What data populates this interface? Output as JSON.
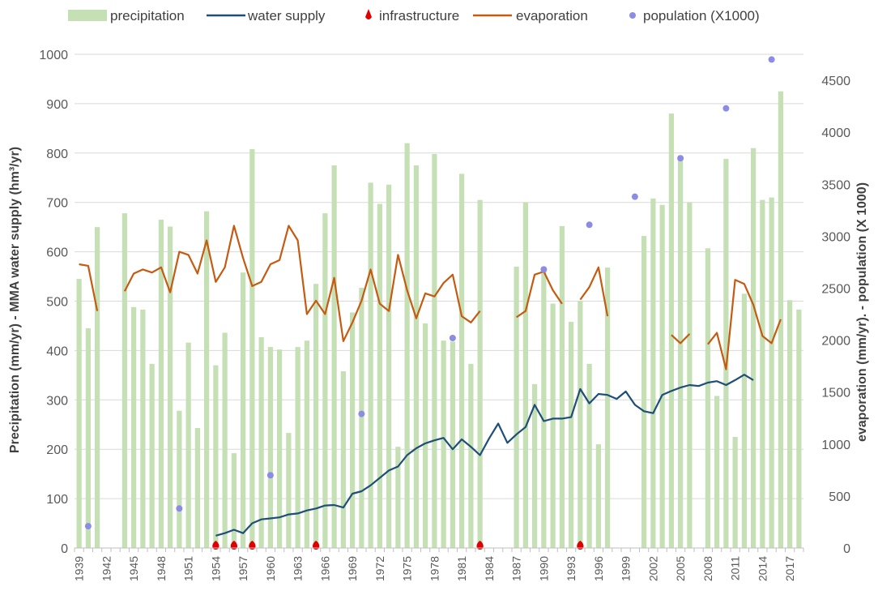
{
  "chart_data": {
    "type": "bar+line+scatter",
    "title": "",
    "ylabel_left": "Precipitation (mm/yr)  -  MMA water supply (hm³/yr)",
    "ylabel_right": "evaporation (mm/yr).  - population (X 1000)",
    "ylim_left": [
      0,
      1000
    ],
    "ylim_right": [
      0,
      4750
    ],
    "y_ticks_left": [
      0,
      100,
      200,
      300,
      400,
      500,
      600,
      700,
      800,
      900,
      1000
    ],
    "y_ticks_right": [
      0,
      500,
      1000,
      1500,
      2000,
      2500,
      3000,
      3500,
      4000,
      4500
    ],
    "year_start": 1939,
    "year_end": 2018,
    "x_tick_labels": [
      "1939",
      "1942",
      "1945",
      "1948",
      "1951",
      "1954",
      "1957",
      "1960",
      "1963",
      "1966",
      "1969",
      "1972",
      "1975",
      "1978",
      "1981",
      "1984",
      "1987",
      "1990",
      "1993",
      "1996",
      "1999",
      "2002",
      "2005",
      "2008",
      "2011",
      "2014",
      "2017"
    ],
    "legend": {
      "precipitation": "precipitation",
      "water_supply": "water supply",
      "infrastructure": "infrastructure",
      "evaporation": "evaporation",
      "population": "population (X1000)"
    },
    "colors": {
      "precipitation": "#c5e0b4",
      "water_supply": "#1f4e79",
      "infrastructure": "#e00000",
      "evaporation": "#c55a11",
      "population": "#8c8ce6",
      "grid": "#d9d9d9",
      "axis": "#bfbfbf"
    },
    "precipitation": [
      [
        1939,
        545
      ],
      [
        1940,
        445
      ],
      [
        1941,
        650
      ],
      [
        1944,
        678
      ],
      [
        1945,
        488
      ],
      [
        1946,
        483
      ],
      [
        1947,
        373
      ],
      [
        1948,
        665
      ],
      [
        1949,
        651
      ],
      [
        1950,
        278
      ],
      [
        1951,
        416
      ],
      [
        1952,
        243
      ],
      [
        1953,
        682
      ],
      [
        1954,
        370
      ],
      [
        1955,
        436
      ],
      [
        1956,
        192
      ],
      [
        1957,
        558
      ],
      [
        1958,
        808
      ],
      [
        1959,
        427
      ],
      [
        1960,
        407
      ],
      [
        1961,
        402
      ],
      [
        1962,
        233
      ],
      [
        1963,
        407
      ],
      [
        1964,
        420
      ],
      [
        1965,
        535
      ],
      [
        1966,
        678
      ],
      [
        1967,
        775
      ],
      [
        1968,
        358
      ],
      [
        1969,
        477
      ],
      [
        1970,
        527
      ],
      [
        1971,
        740
      ],
      [
        1972,
        697
      ],
      [
        1973,
        736
      ],
      [
        1974,
        205
      ],
      [
        1975,
        820
      ],
      [
        1976,
        775
      ],
      [
        1977,
        455
      ],
      [
        1978,
        798
      ],
      [
        1979,
        420
      ],
      [
        1980,
        418
      ],
      [
        1981,
        758
      ],
      [
        1982,
        373
      ],
      [
        1983,
        705
      ],
      [
        1987,
        570
      ],
      [
        1988,
        700
      ],
      [
        1989,
        332
      ],
      [
        1990,
        570
      ],
      [
        1991,
        495
      ],
      [
        1992,
        652
      ],
      [
        1993,
        458
      ],
      [
        1994,
        500
      ],
      [
        1995,
        373
      ],
      [
        1996,
        210
      ],
      [
        1997,
        568
      ],
      [
        2001,
        632
      ],
      [
        2002,
        708
      ],
      [
        2003,
        695
      ],
      [
        2004,
        880
      ],
      [
        2005,
        795
      ],
      [
        2006,
        700
      ],
      [
        2008,
        607
      ],
      [
        2009,
        308
      ],
      [
        2010,
        788
      ],
      [
        2011,
        225
      ],
      [
        2012,
        515
      ],
      [
        2013,
        810
      ],
      [
        2014,
        705
      ],
      [
        2015,
        710
      ],
      [
        2016,
        925
      ],
      [
        2017,
        502
      ],
      [
        2018,
        483
      ]
    ],
    "water_supply_segments": [
      [
        [
          1954,
          25
        ],
        [
          1955,
          30
        ],
        [
          1956,
          37
        ],
        [
          1957,
          30
        ],
        [
          1958,
          50
        ],
        [
          1959,
          58
        ],
        [
          1960,
          60
        ],
        [
          1961,
          62
        ],
        [
          1962,
          68
        ],
        [
          1963,
          70
        ],
        [
          1964,
          76
        ],
        [
          1965,
          80
        ],
        [
          1966,
          86
        ],
        [
          1967,
          87
        ],
        [
          1968,
          82
        ],
        [
          1969,
          110
        ],
        [
          1970,
          115
        ],
        [
          1971,
          127
        ],
        [
          1972,
          142
        ],
        [
          1973,
          157
        ],
        [
          1974,
          165
        ],
        [
          1975,
          188
        ],
        [
          1976,
          202
        ],
        [
          1977,
          212
        ],
        [
          1978,
          218
        ],
        [
          1979,
          223
        ],
        [
          1980,
          200
        ],
        [
          1981,
          220
        ],
        [
          1982,
          205
        ],
        [
          1983,
          188
        ],
        [
          1984,
          222
        ],
        [
          1985,
          252
        ],
        [
          1986,
          213
        ],
        [
          1987,
          230
        ],
        [
          1988,
          245
        ],
        [
          1989,
          290
        ],
        [
          1990,
          257
        ],
        [
          1991,
          262
        ],
        [
          1992,
          262
        ],
        [
          1993,
          265
        ],
        [
          1994,
          322
        ],
        [
          1995,
          293
        ],
        [
          1996,
          312
        ],
        [
          1997,
          310
        ],
        [
          1998,
          302
        ],
        [
          1999,
          317
        ],
        [
          2000,
          290
        ],
        [
          2001,
          277
        ],
        [
          2002,
          273
        ],
        [
          2003,
          310
        ],
        [
          2004,
          318
        ],
        [
          2005,
          325
        ],
        [
          2006,
          330
        ],
        [
          2007,
          328
        ],
        [
          2008,
          335
        ],
        [
          2009,
          338
        ],
        [
          2010,
          330
        ],
        [
          2011,
          340
        ],
        [
          2012,
          351
        ],
        [
          2013,
          340
        ]
      ]
    ],
    "evaporation_segments": [
      [
        [
          1939,
          2730
        ],
        [
          1940,
          2715
        ],
        [
          1941,
          2280
        ]
      ],
      [
        [
          1944,
          2470
        ],
        [
          1945,
          2640
        ],
        [
          1946,
          2680
        ],
        [
          1947,
          2650
        ],
        [
          1948,
          2700
        ],
        [
          1949,
          2460
        ],
        [
          1950,
          2850
        ],
        [
          1951,
          2820
        ],
        [
          1952,
          2640
        ],
        [
          1953,
          2960
        ],
        [
          1954,
          2560
        ],
        [
          1955,
          2700
        ],
        [
          1956,
          3100
        ],
        [
          1957,
          2790
        ],
        [
          1958,
          2520
        ],
        [
          1959,
          2560
        ],
        [
          1960,
          2730
        ],
        [
          1961,
          2770
        ],
        [
          1962,
          3100
        ],
        [
          1963,
          2960
        ],
        [
          1964,
          2250
        ],
        [
          1965,
          2380
        ],
        [
          1966,
          2250
        ],
        [
          1967,
          2600
        ],
        [
          1968,
          1990
        ],
        [
          1969,
          2170
        ],
        [
          1970,
          2380
        ],
        [
          1971,
          2680
        ],
        [
          1972,
          2350
        ],
        [
          1973,
          2280
        ],
        [
          1974,
          2820
        ],
        [
          1975,
          2480
        ],
        [
          1976,
          2210
        ],
        [
          1977,
          2450
        ],
        [
          1978,
          2420
        ],
        [
          1979,
          2550
        ],
        [
          1980,
          2630
        ],
        [
          1981,
          2230
        ],
        [
          1982,
          2170
        ],
        [
          1983,
          2280
        ]
      ],
      [
        [
          1987,
          2220
        ],
        [
          1988,
          2280
        ],
        [
          1989,
          2630
        ],
        [
          1990,
          2660
        ],
        [
          1991,
          2480
        ],
        [
          1992,
          2350
        ]
      ],
      [
        [
          1994,
          2390
        ],
        [
          1995,
          2510
        ],
        [
          1996,
          2700
        ],
        [
          1997,
          2230
        ]
      ],
      [
        [
          2004,
          2050
        ],
        [
          2005,
          1970
        ],
        [
          2006,
          2060
        ]
      ],
      [
        [
          2008,
          1960
        ],
        [
          2009,
          2070
        ],
        [
          2010,
          1720
        ],
        [
          2011,
          2580
        ],
        [
          2012,
          2540
        ],
        [
          2013,
          2340
        ],
        [
          2014,
          2040
        ],
        [
          2015,
          1970
        ],
        [
          2016,
          2200
        ]
      ]
    ],
    "population": [
      [
        1940,
        210
      ],
      [
        1950,
        380
      ],
      [
        1960,
        700
      ],
      [
        1970,
        1290
      ],
      [
        1980,
        2020
      ],
      [
        1990,
        2680
      ],
      [
        1995,
        3110
      ],
      [
        2000,
        3380
      ],
      [
        2005,
        3750
      ],
      [
        2010,
        4230
      ],
      [
        2015,
        4700
      ]
    ],
    "infrastructure": [
      [
        1954,
        5
      ],
      [
        1956,
        5
      ],
      [
        1958,
        5
      ],
      [
        1965,
        5
      ],
      [
        1983,
        5
      ],
      [
        1994,
        5
      ]
    ]
  }
}
